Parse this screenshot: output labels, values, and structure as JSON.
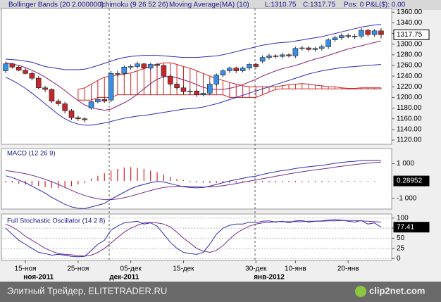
{
  "header": {
    "indicators": [
      "Bollinger Bands (20 2.000000)",
      "Ichimoku (9 26 52 26)",
      "Moving Average(MA) (10)"
    ],
    "low": "L:1310.75",
    "close": "C:1317.75",
    "position": "Pos: 0 P&L($): 0.00"
  },
  "footer": {
    "source": "Элитный Трейдер, ELITETRADER.RU",
    "logo": "clip2net.com"
  },
  "chart_data": [
    {
      "type": "candlestick",
      "up_color": "#3a8ee6",
      "down_color": "#c0282d",
      "open": [
        1250,
        1263,
        1257,
        1251,
        1245,
        1236,
        1218,
        1215,
        1193,
        1188,
        1175,
        1162,
        1160,
        1180,
        1192,
        1196,
        1195,
        1245,
        1245,
        1257,
        1258,
        1263,
        1255,
        1262,
        1260,
        1240,
        1225,
        1218,
        1211,
        1212,
        1205,
        1208,
        1225,
        1242,
        1250,
        1255,
        1250,
        1255,
        1262,
        1268,
        1275,
        1278,
        1277,
        1280,
        1278,
        1292,
        1293,
        1290,
        1292,
        1295,
        1308,
        1312,
        1316,
        1315,
        1315,
        1326,
        1318,
        1325
      ],
      "high": [
        1267,
        1265,
        1260,
        1255,
        1249,
        1240,
        1222,
        1217,
        1197,
        1192,
        1178,
        1166,
        1163,
        1194,
        1199,
        1200,
        1250,
        1250,
        1260,
        1262,
        1267,
        1265,
        1265,
        1265,
        1262,
        1244,
        1228,
        1222,
        1216,
        1216,
        1210,
        1228,
        1245,
        1253,
        1258,
        1258,
        1258,
        1265,
        1265,
        1279,
        1282,
        1281,
        1284,
        1283,
        1295,
        1297,
        1296,
        1295,
        1299,
        1311,
        1316,
        1320,
        1320,
        1319,
        1330,
        1329,
        1328,
        1330
      ],
      "low": [
        1246,
        1254,
        1249,
        1243,
        1232,
        1215,
        1210,
        1190,
        1184,
        1170,
        1158,
        1156,
        1153,
        1177,
        1189,
        1190,
        1191,
        1238,
        1241,
        1252,
        1254,
        1252,
        1251,
        1256,
        1236,
        1221,
        1214,
        1207,
        1206,
        1201,
        1202,
        1204,
        1221,
        1238,
        1246,
        1246,
        1247,
        1251,
        1254,
        1264,
        1271,
        1273,
        1273,
        1275,
        1274,
        1288,
        1286,
        1286,
        1288,
        1291,
        1304,
        1308,
        1311,
        1310,
        1311,
        1314,
        1314,
        1310.75
      ],
      "close": [
        1263,
        1257,
        1251,
        1245,
        1236,
        1218,
        1215,
        1193,
        1188,
        1175,
        1162,
        1160,
        1158,
        1192,
        1196,
        1193,
        1245,
        1245,
        1257,
        1258,
        1263,
        1255,
        1262,
        1260,
        1240,
        1225,
        1218,
        1211,
        1212,
        1205,
        1208,
        1225,
        1242,
        1250,
        1255,
        1250,
        1255,
        1262,
        1258,
        1275,
        1278,
        1277,
        1280,
        1278,
        1292,
        1293,
        1290,
        1292,
        1295,
        1308,
        1312,
        1316,
        1315,
        1315,
        1326,
        1318,
        1325,
        1317.75
      ],
      "bands": {
        "color": "#2b2bb8",
        "upper": [
          1272,
          1271,
          1270,
          1268,
          1266,
          1262,
          1258,
          1256,
          1254,
          1252,
          1252,
          1252,
          1253,
          1256,
          1260,
          1264,
          1268,
          1272,
          1275,
          1277,
          1278,
          1279,
          1279,
          1279,
          1278,
          1277,
          1276,
          1275,
          1275,
          1275,
          1276,
          1277,
          1278,
          1280,
          1283,
          1286,
          1289,
          1292,
          1295,
          1298,
          1300,
          1302,
          1303,
          1304,
          1306,
          1308,
          1310,
          1312,
          1314,
          1317,
          1320,
          1323,
          1326,
          1329,
          1332,
          1334,
          1336,
          1337
        ],
        "lower": [
          1238,
          1232,
          1225,
          1217,
          1208,
          1198,
          1188,
          1178,
          1168,
          1160,
          1154,
          1150,
          1148,
          1148,
          1150,
          1152,
          1155,
          1158,
          1161,
          1163,
          1165,
          1166,
          1168,
          1170,
          1172,
          1174,
          1176,
          1178,
          1179,
          1180,
          1182,
          1185,
          1188,
          1192,
          1196,
          1200,
          1204,
          1208,
          1212,
          1216,
          1220,
          1224,
          1228,
          1232,
          1236,
          1240,
          1244,
          1247,
          1250,
          1252,
          1254,
          1256,
          1257,
          1258,
          1259,
          1260,
          1261,
          1262
        ]
      },
      "ma": {
        "color": "#8a1f6e",
        "values": [
          1265,
          1263,
          1260,
          1256,
          1251,
          1245,
          1238,
          1230,
          1222,
          1213,
          1203,
          1194,
          1186,
          1181,
          1178,
          1176,
          1178,
          1184,
          1190,
          1197,
          1206,
          1216,
          1226,
          1234,
          1239,
          1239,
          1237,
          1233,
          1229,
          1224,
          1219,
          1216,
          1215,
          1215,
          1217,
          1220,
          1224,
          1229,
          1234,
          1240,
          1245,
          1250,
          1254,
          1257,
          1260,
          1264,
          1268,
          1272,
          1275,
          1279,
          1283,
          1287,
          1291,
          1294,
          1297,
          1300,
          1303,
          1306
        ]
      },
      "cloud": {
        "color": "#cc2222",
        "span_a": [
          null,
          null,
          null,
          null,
          null,
          null,
          null,
          null,
          null,
          null,
          null,
          1215,
          1218,
          1225,
          1232,
          1238,
          1240,
          1242,
          1244,
          1246,
          1250,
          1254,
          1258,
          1262,
          1265,
          1265,
          1262,
          1258,
          1255,
          1250,
          1245,
          1240,
          1235,
          1232,
          1228,
          1225,
          1222,
          1220,
          1220,
          1220,
          1220,
          1220,
          1222,
          1224,
          1225,
          1226,
          1225,
          1223,
          1222,
          1220,
          1220,
          1218,
          1217,
          1217,
          1218,
          1218,
          1218,
          1218
        ],
        "span_b": [
          null,
          null,
          null,
          null,
          null,
          null,
          null,
          null,
          null,
          null,
          null,
          1195,
          1195,
          1195,
          1200,
          1200,
          1200,
          1205,
          1205,
          1205,
          1205,
          1205,
          1205,
          1205,
          1205,
          1205,
          1205,
          1205,
          1205,
          1205,
          1205,
          1205,
          1205,
          1205,
          1200,
          1200,
          1200,
          1200,
          1200,
          1205,
          1210,
          1215,
          1216,
          1216,
          1216,
          1216,
          1216,
          1216,
          1216,
          1216,
          1216,
          1216,
          1216,
          1216,
          1216,
          1216,
          1216,
          1216
        ]
      },
      "ylim": [
        1112,
        1367
      ],
      "yticks": [
        {
          "value": 1120,
          "label": "1120.00"
        },
        {
          "value": 1140,
          "label": "1140.00"
        },
        {
          "value": 1160,
          "label": "1160.00"
        },
        {
          "value": 1180,
          "label": "1180.00"
        },
        {
          "value": 1200,
          "label": "1200.00"
        },
        {
          "value": 1220,
          "label": "1220.00"
        },
        {
          "value": 1240,
          "label": "1240.00"
        },
        {
          "value": 1260,
          "label": "1260.00"
        },
        {
          "value": 1280,
          "label": "1280.00"
        },
        {
          "value": 1300,
          "label": "1300.00"
        },
        {
          "value": 1320,
          "label": "1320.00"
        },
        {
          "value": 1340,
          "label": "1340.00"
        },
        {
          "value": 1360,
          "label": "1360.00"
        }
      ]
    },
    {
      "type": "macd",
      "title": "MACD (12 26 9)",
      "macd": {
        "color": "#2b2bb8",
        "values": [
          300,
          200,
          50,
          -100,
          -300,
          -500,
          -700,
          -950,
          -1150,
          -1350,
          -1500,
          -1580,
          -1600,
          -1500,
          -1400,
          -1300,
          -1050,
          -850,
          -650,
          -450,
          -300,
          -200,
          -100,
          -30,
          -60,
          -150,
          -250,
          -330,
          -380,
          -400,
          -380,
          -300,
          -200,
          -100,
          0,
          80,
          150,
          230,
          280,
          380,
          460,
          530,
          600,
          650,
          720,
          780,
          820,
          860,
          900,
          960,
          1020,
          1070,
          1110,
          1140,
          1180,
          1190,
          1200,
          1200
        ]
      },
      "signal": {
        "color": "#7a2a8a",
        "values": [
          600,
          550,
          490,
          420,
          330,
          220,
          100,
          -40,
          -200,
          -370,
          -540,
          -700,
          -840,
          -950,
          -1030,
          -1080,
          -1080,
          -1040,
          -970,
          -880,
          -770,
          -660,
          -550,
          -450,
          -380,
          -330,
          -310,
          -310,
          -320,
          -340,
          -350,
          -340,
          -310,
          -270,
          -210,
          -150,
          -80,
          -10,
          60,
          130,
          200,
          270,
          340,
          410,
          470,
          530,
          590,
          640,
          690,
          740,
          800,
          850,
          900,
          950,
          990,
          1030,
          1060,
          1090
        ]
      },
      "histogram": {
        "color": "#cc2222",
        "values": [
          -80,
          -100,
          -150,
          -200,
          -250,
          -300,
          -350,
          -400,
          -420,
          -380,
          -300,
          -200,
          -100,
          150,
          300,
          450,
          600,
          700,
          780,
          800,
          760,
          700,
          600,
          500,
          380,
          250,
          120,
          50,
          -60,
          -80,
          -100,
          -110,
          -120,
          -120,
          -110,
          -100,
          -100,
          -90,
          -90,
          -80,
          -80,
          -80,
          -70,
          -70,
          -70,
          -60,
          -60,
          -60,
          -60,
          -50,
          -50,
          -50,
          -40,
          -40,
          -40,
          -30,
          -30,
          0.28952
        ]
      },
      "ylim": [
        -1625,
        1875
      ],
      "yticks": [
        {
          "value": 1000,
          "label": "1 000"
        },
        {
          "value": -1000,
          "label": "-1 000"
        }
      ]
    },
    {
      "type": "stochastic",
      "title": "Full Stochastic Oscillator (14 2 8)",
      "categories": [
        null,
        null,
        null,
        "15-ноя",
        null,
        null,
        null,
        null,
        null,
        null,
        null,
        "25-ноя",
        null,
        null,
        null,
        null,
        null,
        null,
        null,
        "05-дек",
        null,
        null,
        null,
        null,
        null,
        null,
        null,
        "15-дек",
        null,
        null,
        null,
        null,
        null,
        null,
        null,
        null,
        null,
        null,
        "30-дек",
        null,
        null,
        null,
        null,
        null,
        "10-янв",
        null,
        null,
        null,
        null,
        null,
        null,
        null,
        "20-янв",
        null,
        null,
        null,
        null,
        null
      ],
      "categories_month": [
        null,
        null,
        null,
        null,
        null,
        "ноя-2011",
        null,
        null,
        null,
        null,
        null,
        null,
        null,
        null,
        null,
        null,
        null,
        null,
        "дек-2011",
        null,
        null,
        null,
        null,
        null,
        null,
        null,
        null,
        null,
        null,
        null,
        null,
        null,
        null,
        null,
        null,
        null,
        null,
        null,
        null,
        null,
        "янв-2012",
        null,
        null,
        null,
        null,
        null,
        null,
        null,
        null,
        null,
        null,
        null,
        null,
        null,
        null,
        null,
        null,
        null
      ],
      "k": {
        "color": "#2b2bb8",
        "values": [
          75,
          60,
          45,
          35,
          25,
          15,
          12,
          8,
          10,
          8,
          5,
          4,
          5,
          20,
          35,
          45,
          70,
          80,
          88,
          90,
          92,
          85,
          88,
          80,
          60,
          40,
          25,
          15,
          12,
          10,
          15,
          35,
          60,
          75,
          82,
          85,
          85,
          90,
          88,
          92,
          93,
          90,
          92,
          88,
          93,
          94,
          90,
          92,
          93,
          95,
          96,
          95,
          92,
          90,
          94,
          85,
          88,
          77.41
        ]
      },
      "d": {
        "color": "#7a2a8a",
        "values": [
          85,
          78,
          68,
          55,
          45,
          35,
          25,
          18,
          12,
          10,
          9,
          7,
          6,
          8,
          15,
          25,
          38,
          52,
          65,
          75,
          82,
          88,
          89,
          88,
          85,
          78,
          65,
          50,
          38,
          25,
          18,
          15,
          20,
          32,
          48,
          62,
          72,
          80,
          85,
          88,
          89,
          91,
          91,
          91,
          91,
          91,
          92,
          92,
          92,
          93,
          93,
          94,
          94,
          94,
          93,
          92,
          91,
          90
        ]
      },
      "ylim": [
        -5,
        110
      ],
      "yticks": [
        0,
        25,
        50,
        75,
        100
      ],
      "grid": true
    }
  ]
}
